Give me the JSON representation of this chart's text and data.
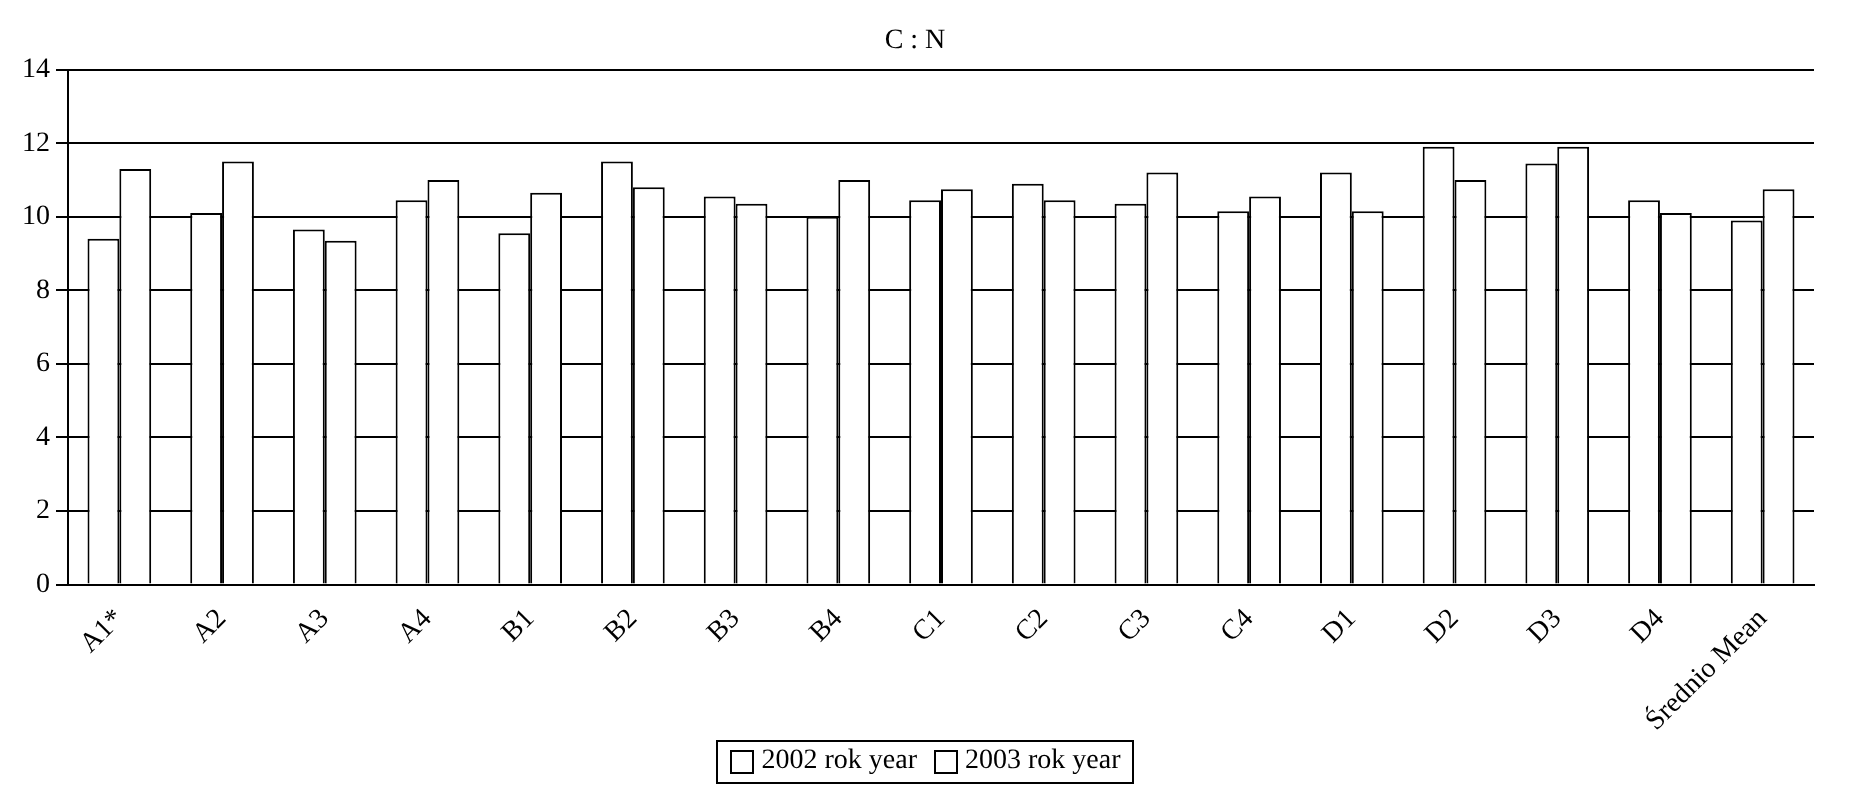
{
  "chart_data": {
    "type": "bar",
    "title": "C : N",
    "categories": [
      "A1*",
      "A2",
      "A3",
      "A4",
      "B1",
      "B2",
      "B3",
      "B4",
      "C1",
      "C2",
      "C3",
      "C4",
      "D1",
      "D2",
      "D3",
      "D4",
      "Średnio Mean"
    ],
    "series": [
      {
        "name": "2002 rok year",
        "color": "#ffffff",
        "values": [
          9.4,
          10.1,
          9.65,
          10.45,
          9.55,
          11.5,
          10.55,
          10.0,
          10.45,
          10.9,
          10.35,
          10.15,
          11.2,
          11.9,
          11.45,
          10.45,
          9.9
        ]
      },
      {
        "name": "2003 rok year",
        "color": "#ffffff",
        "values": [
          11.3,
          11.5,
          9.35,
          11.0,
          10.65,
          10.8,
          10.35,
          11.0,
          10.75,
          10.45,
          11.2,
          10.55,
          10.15,
          11.0,
          11.9,
          10.1,
          10.75
        ]
      }
    ],
    "ylim": [
      0,
      14
    ],
    "yticks": [
      0,
      2,
      4,
      6,
      8,
      10,
      12,
      14
    ],
    "grid": "y",
    "legend": "bottom"
  }
}
